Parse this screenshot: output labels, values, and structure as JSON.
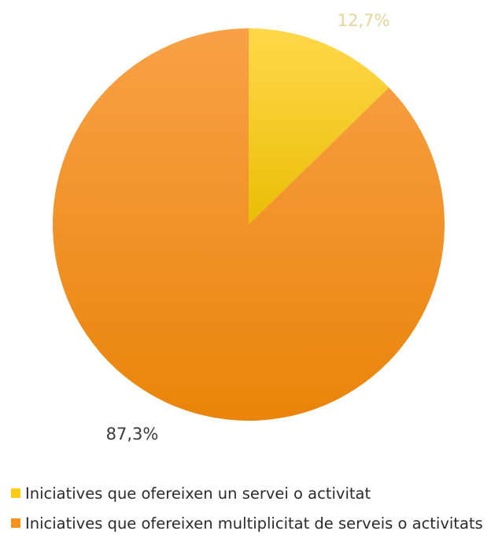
{
  "chart_data": {
    "type": "pie",
    "categories": [
      "Iniciatives que ofereixen un servei o activitat",
      "Iniciatives que ofereixen multiplicitat de serveis o activitats"
    ],
    "values": [
      12.7,
      87.3
    ],
    "data_labels": [
      "12,7%",
      "87,3%"
    ],
    "colors": [
      "#f7cc12",
      "#f6921e"
    ],
    "label_colors": [
      "#e8d19a",
      "#3a3a3a"
    ],
    "start_angle_deg": 0,
    "direction": "clockwise",
    "legend_position": "bottom-left",
    "title": ""
  }
}
